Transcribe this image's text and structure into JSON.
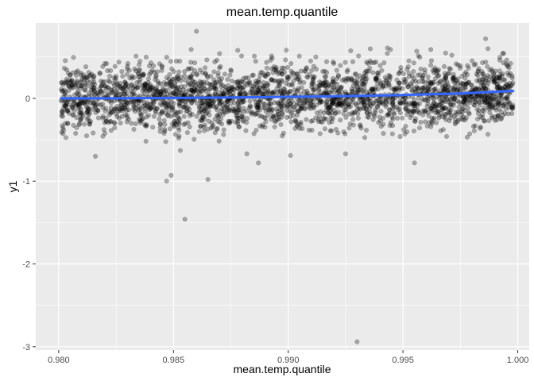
{
  "chart_data": {
    "type": "scatter",
    "title": "mean.temp.quantile",
    "xlabel": "mean.temp.quantile",
    "ylabel": "y1",
    "xlim": [
      0.979,
      1.0005
    ],
    "ylim": [
      -3.04,
      0.91
    ],
    "x_ticks": [
      0.98,
      0.985,
      0.99,
      0.995,
      1.0
    ],
    "x_tick_labels": [
      "0.980",
      "0.985",
      "0.990",
      "0.995",
      "1.000"
    ],
    "y_ticks": [
      -3,
      -2,
      -1,
      0
    ],
    "y_tick_labels": [
      "-3",
      "-2",
      "-1",
      "0"
    ],
    "grid": true,
    "point_color": "#000000",
    "point_opacity": 0.3,
    "background": "#ebebeb",
    "grid_color": "#ffffff",
    "smooth_color": "#3366ff",
    "point_count": 2600,
    "bulk_y_range": [
      -0.8,
      0.8
    ],
    "series": [
      {
        "kind": "points",
        "points": [
          [
            0.986,
            0.81
          ],
          [
            0.9878,
            0.58
          ],
          [
            0.9986,
            0.72
          ],
          [
            0.9987,
            0.6
          ],
          [
            0.9956,
            0.57
          ],
          [
            0.9912,
            0.5
          ],
          [
            0.9847,
            -1.0
          ],
          [
            0.9849,
            -0.93
          ],
          [
            0.9855,
            -1.46
          ],
          [
            0.9865,
            -0.98
          ],
          [
            0.993,
            -2.94
          ],
          [
            0.9955,
            -0.78
          ],
          [
            0.9816,
            -0.7
          ],
          [
            0.9887,
            -0.78
          ],
          [
            0.9882,
            -0.67
          ],
          [
            0.9901,
            -0.69
          ],
          [
            0.9925,
            -0.67
          ],
          [
            0.9969,
            -0.46
          ],
          [
            0.9978,
            -0.47
          ],
          [
            0.9853,
            -0.63
          ]
        ]
      },
      {
        "kind": "smooth",
        "x": [
          0.9801,
          0.9825,
          0.985,
          0.9875,
          0.99,
          0.9925,
          0.995,
          0.9975,
          0.9998
        ],
        "values": [
          0.0,
          0.0,
          0.005,
          0.01,
          0.018,
          0.027,
          0.04,
          0.06,
          0.09
        ]
      }
    ]
  }
}
